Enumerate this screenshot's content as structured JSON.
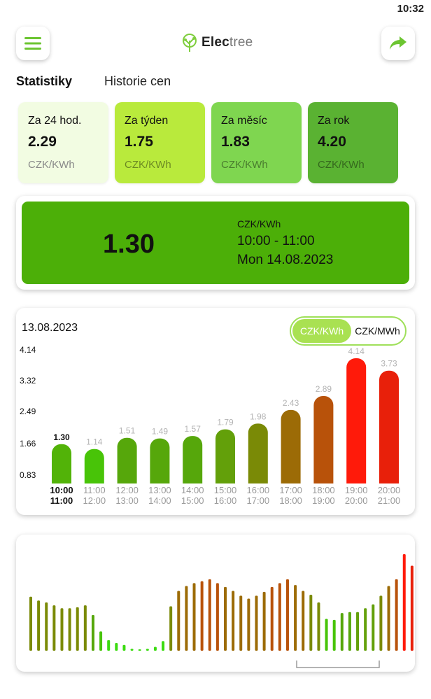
{
  "status_bar": {
    "time": "10:32"
  },
  "header": {
    "logo_bold": "Elec",
    "logo_light": "tree"
  },
  "tabs": [
    {
      "label": "Statistiky",
      "active": true
    },
    {
      "label": "Historie cen",
      "active": false
    }
  ],
  "stats": [
    {
      "label": "Za 24 hod.",
      "value": "2.29",
      "unit": "CZK/KWh"
    },
    {
      "label": "Za týden",
      "value": "1.75",
      "unit": "CZK/KWh"
    },
    {
      "label": "Za měsíc",
      "value": "1.83",
      "unit": "CZK/KWh"
    },
    {
      "label": "Za rok",
      "value": "4.20",
      "unit": "CZK/KWh"
    }
  ],
  "current": {
    "price": "1.30",
    "unit": "CZK/KWh",
    "time": "10:00 - 11:00",
    "date": "Mon 14.08.2023"
  },
  "chart": {
    "date": "13.08.2023",
    "unit_options": [
      "CZK/KWh",
      "CZK/MWh"
    ],
    "selected_unit": "CZK/KWh"
  },
  "chart_data": [
    {
      "type": "bar",
      "categories": [
        "10:00-11:00",
        "11:00-12:00",
        "12:00-13:00",
        "13:00-14:00",
        "14:00-15:00",
        "15:00-16:00",
        "16:00-17:00",
        "17:00-18:00",
        "18:00-19:00",
        "19:00-20:00",
        "20:00-21:00"
      ],
      "category_from": [
        "10:00",
        "11:00",
        "12:00",
        "13:00",
        "14:00",
        "15:00",
        "16:00",
        "17:00",
        "18:00",
        "19:00",
        "20:00"
      ],
      "category_to": [
        "11:00",
        "12:00",
        "13:00",
        "14:00",
        "15:00",
        "16:00",
        "17:00",
        "18:00",
        "19:00",
        "20:00",
        "21:00"
      ],
      "values": [
        1.3,
        1.14,
        1.51,
        1.49,
        1.57,
        1.79,
        1.98,
        2.43,
        2.89,
        4.14,
        3.73
      ],
      "value_labels": [
        "1.30",
        "1.14",
        "1.51",
        "1.49",
        "1.57",
        "1.79",
        "1.98",
        "2.43",
        "2.89",
        "4.14",
        "3.73"
      ],
      "colors": [
        "#52b308",
        "#48c408",
        "#56a70b",
        "#56a70b",
        "#56a70b",
        "#63a00a",
        "#7a8a06",
        "#9c6b06",
        "#b8520a",
        "#ff1a0a",
        "#e8200a"
      ],
      "highlight_index": 0,
      "yticks": [
        "4.14",
        "3.32",
        "2.49",
        "1.66",
        "0.83"
      ],
      "ylim": [
        0,
        4.14
      ]
    },
    {
      "type": "bar",
      "values": [
        0.56,
        0.52,
        0.5,
        0.47,
        0.44,
        0.44,
        0.45,
        0.47,
        0.37,
        0.2,
        0.11,
        0.08,
        0.06,
        0.02,
        0.01,
        0.02,
        0.04,
        0.1,
        0.46,
        0.62,
        0.67,
        0.7,
        0.72,
        0.74,
        0.7,
        0.66,
        0.62,
        0.57,
        0.54,
        0.57,
        0.61,
        0.66,
        0.7,
        0.74,
        0.68,
        0.62,
        0.58,
        0.5,
        0.33,
        0.32,
        0.39,
        0.4,
        0.4,
        0.44,
        0.48,
        0.57,
        0.67,
        0.74,
        1.0,
        0.88,
        0.78,
        0.68,
        0.6
      ],
      "colors": [
        "#7a8a06",
        "#7a8a06",
        "#7a8a06",
        "#7a8a06",
        "#7a8a06",
        "#7a8a06",
        "#7a8a06",
        "#7a8a06",
        "#56a70b",
        "#48c408",
        "#3bdb10",
        "#3bdb10",
        "#3bdb10",
        "#3bdb10",
        "#3bdb10",
        "#3bdb10",
        "#3bdb10",
        "#3bdb10",
        "#7a8a06",
        "#9c6b06",
        "#9c6b06",
        "#9c6b06",
        "#b8520a",
        "#b8520a",
        "#b8520a",
        "#9c6b06",
        "#9c6b06",
        "#9c6b06",
        "#9c6b06",
        "#9c6b06",
        "#9c6b06",
        "#b8520a",
        "#b8520a",
        "#b8520a",
        "#9c6b06",
        "#9c6b06",
        "#7a8a06",
        "#7a8a06",
        "#48c408",
        "#48c408",
        "#56a70b",
        "#56a70b",
        "#63a00a",
        "#63a00a",
        "#63a00a",
        "#7a8a06",
        "#9c6b06",
        "#b8520a",
        "#ff1a0a",
        "#e8200a",
        "#d8300a",
        "#b8520a",
        "#9c6b06"
      ]
    }
  ]
}
